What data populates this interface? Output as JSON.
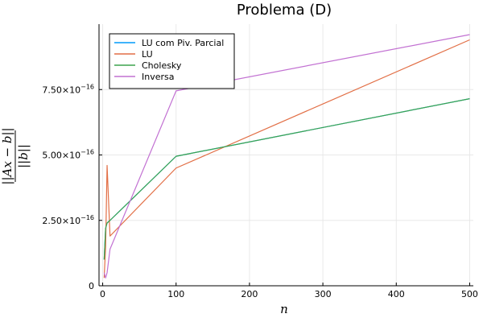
{
  "chart_data": {
    "type": "line",
    "title": "Problema (D)",
    "xlabel": "n",
    "ylabel": "||Ax − b|| / ||b||",
    "ylabel_num": "||Ax − b||",
    "ylabel_den": "||b||",
    "xlim": [
      -5,
      505
    ],
    "ylim": [
      0,
      1e-15
    ],
    "x_ticks": [
      0,
      100,
      200,
      300,
      400,
      500
    ],
    "x_tick_labels": [
      "0",
      "100",
      "200",
      "300",
      "400",
      "500"
    ],
    "y_ticks": [
      0,
      2.5e-16,
      5e-16,
      7.5e-16
    ],
    "y_tick_labels": [
      {
        "mantissa": "0",
        "exp": ""
      },
      {
        "mantissa": "2.50×10",
        "exp": "−16"
      },
      {
        "mantissa": "5.00×10",
        "exp": "−16"
      },
      {
        "mantissa": "7.50×10",
        "exp": "−16"
      }
    ],
    "grid": true,
    "legend_position": "top-left",
    "series": [
      {
        "name": "LU com Piv. Parcial",
        "color": "#009AFA",
        "x": [
          2,
          4,
          6,
          10,
          100,
          500
        ],
        "y": [
          1e-16,
          2.2e-16,
          2.4e-16,
          2.5e-16,
          4.95e-16,
          7.15e-16
        ]
      },
      {
        "name": "LU",
        "color": "#E26F46",
        "x": [
          2,
          4,
          6,
          10,
          100,
          500
        ],
        "y": [
          3e-17,
          1.5e-16,
          4.6e-16,
          1.9e-16,
          4.5e-16,
          9.4e-16
        ]
      },
      {
        "name": "Cholesky",
        "color": "#3DA44E",
        "x": [
          2,
          4,
          6,
          10,
          100,
          500
        ],
        "y": [
          1e-16,
          2.2e-16,
          2.4e-16,
          2.5e-16,
          4.95e-16,
          7.15e-16
        ]
      },
      {
        "name": "Inversa",
        "color": "#C271D2",
        "x": [
          2,
          4,
          6,
          10,
          100,
          500
        ],
        "y": [
          5e-17,
          3e-17,
          5e-17,
          1.4e-16,
          7.45e-16,
          9.6e-16
        ]
      }
    ]
  }
}
